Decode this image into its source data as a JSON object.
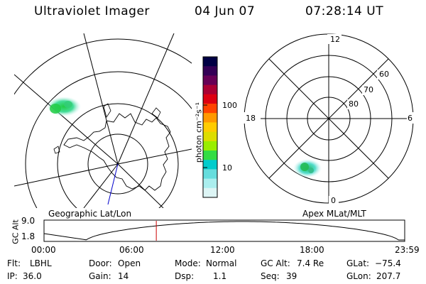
{
  "header": {
    "title": "Ultraviolet Imager",
    "date": "04 Jun 07",
    "time": "07:28:14 UT"
  },
  "left_panel": {
    "label": "Geographic Lat/Lon"
  },
  "right_panel": {
    "label": "Apex MLat/MLT",
    "ring_labels": [
      "80",
      "70",
      "60"
    ],
    "mlt_labels": [
      "12",
      "18",
      "6",
      "0"
    ]
  },
  "colorbar": {
    "unit_label": "photon cm⁻²s⁻¹",
    "tick_labels": [
      "100",
      "10"
    ],
    "colors": [
      "#000044",
      "#330055",
      "#660055",
      "#aa0033",
      "#dd0011",
      "#ff4400",
      "#ff9900",
      "#ffcc00",
      "#dddd00",
      "#99ee00",
      "#33dd44",
      "#00cccc",
      "#66dddd",
      "#aaeeee",
      "#ddf5f5"
    ]
  },
  "timeline": {
    "ylabel": "GC Alt",
    "ymax": "9.0",
    "ymin": "1.8",
    "ticks": [
      "00:00",
      "06:00",
      "12:00",
      "18:00",
      "23:59"
    ],
    "current_fraction": 0.3113,
    "marker_color": "#cc0000"
  },
  "info": {
    "flt_key": "Flt:",
    "flt_val": "LBHL",
    "door_key": "Door:",
    "door_val": "Open",
    "mode_key": "Mode:",
    "mode_val": "Normal",
    "gcalt_key": "GC Alt:",
    "gcalt_val": "7.4 Re",
    "glat_key": "GLat:",
    "glat_val": "−75.4",
    "ip_key": "IP:",
    "ip_val": "36.0",
    "gain_key": "Gain:",
    "gain_val": "14",
    "dsp_key": "Dsp:",
    "dsp_val": "1.1",
    "seq_key": "Seq:",
    "seq_val": "39",
    "glon_key": "GLon:",
    "glon_val": "207.7"
  }
}
